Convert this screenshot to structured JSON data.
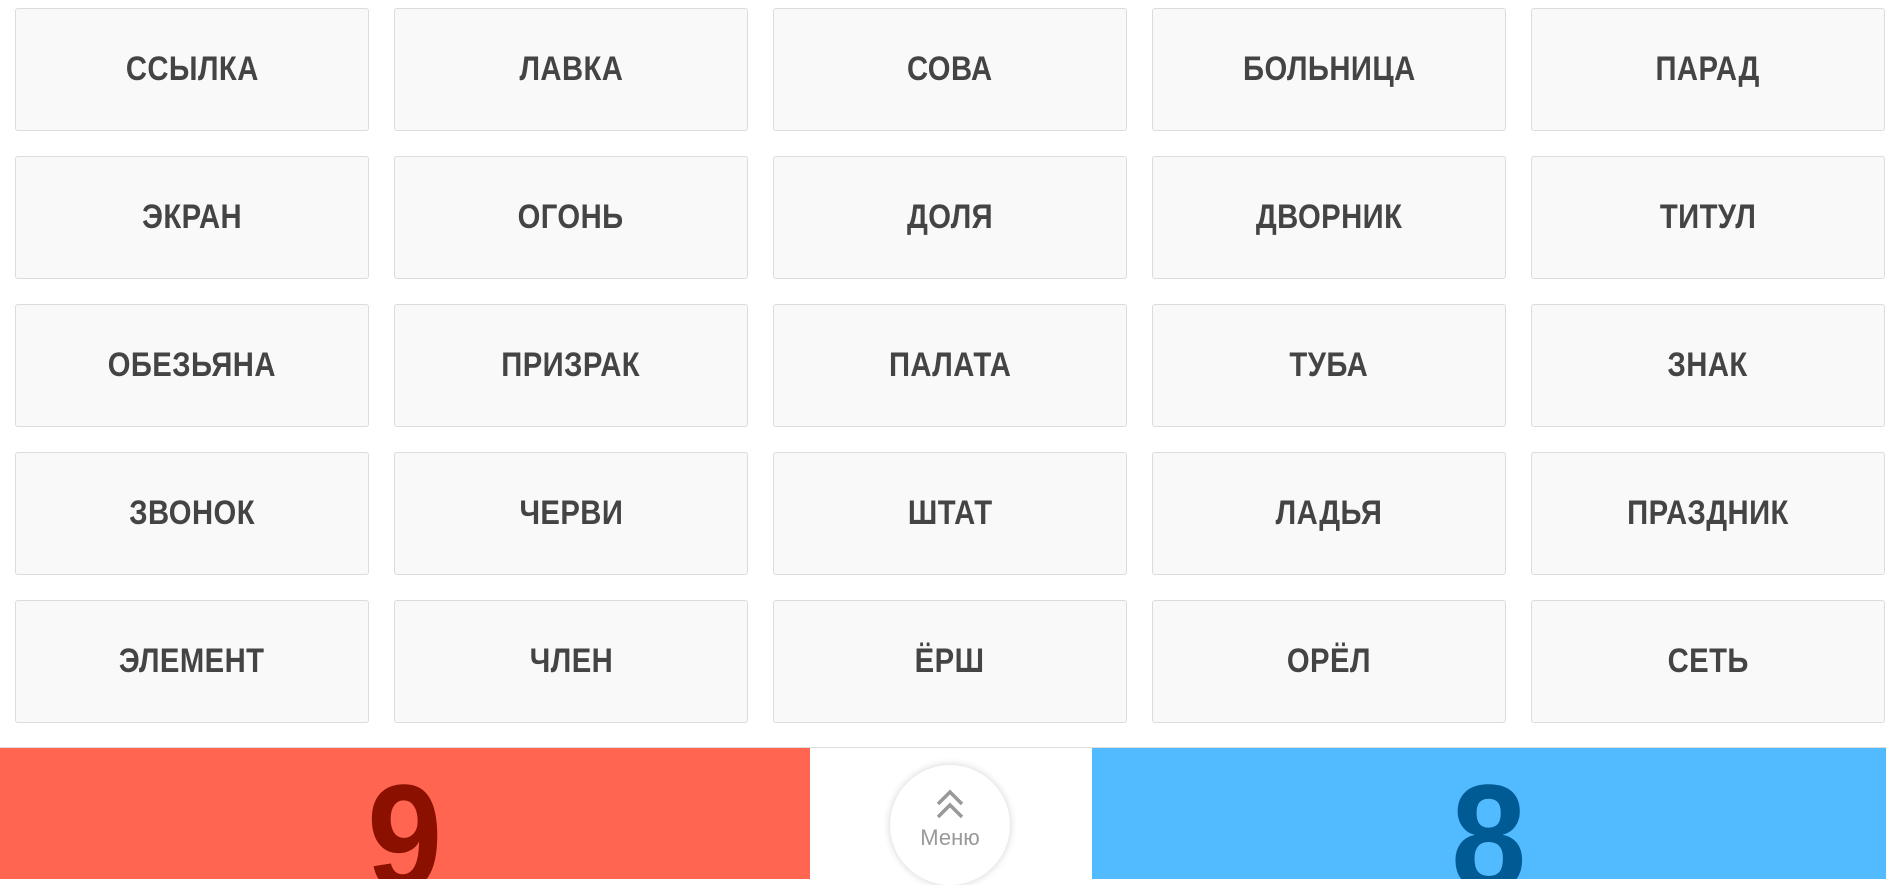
{
  "words": [
    "ССЫЛКА",
    "ЛАВКА",
    "СОВА",
    "БОЛЬНИЦА",
    "ПАРАД",
    "ЭКРАН",
    "ОГОНЬ",
    "ДОЛЯ",
    "ДВОРНИК",
    "ТИТУЛ",
    "ОБЕЗЬЯНА",
    "ПРИЗРАК",
    "ПАЛАТА",
    "ТУБА",
    "ЗНАК",
    "ЗВОНОК",
    "ЧЕРВИ",
    "ШТАТ",
    "ЛАДЬЯ",
    "ПРАЗДНИК",
    "ЭЛЕМЕНТ",
    "ЧЛЕН",
    "ЁРШ",
    "ОРЁЛ",
    "СЕТЬ"
  ],
  "footer": {
    "red_team": {
      "score": "9",
      "bg_color": "#FF6551",
      "text_color": "#8B1000"
    },
    "blue_team": {
      "score": "8",
      "bg_color": "#52BBFF",
      "text_color": "#005A94"
    },
    "menu": {
      "label": "Меню",
      "icon": "double-chevron-up-icon"
    }
  }
}
